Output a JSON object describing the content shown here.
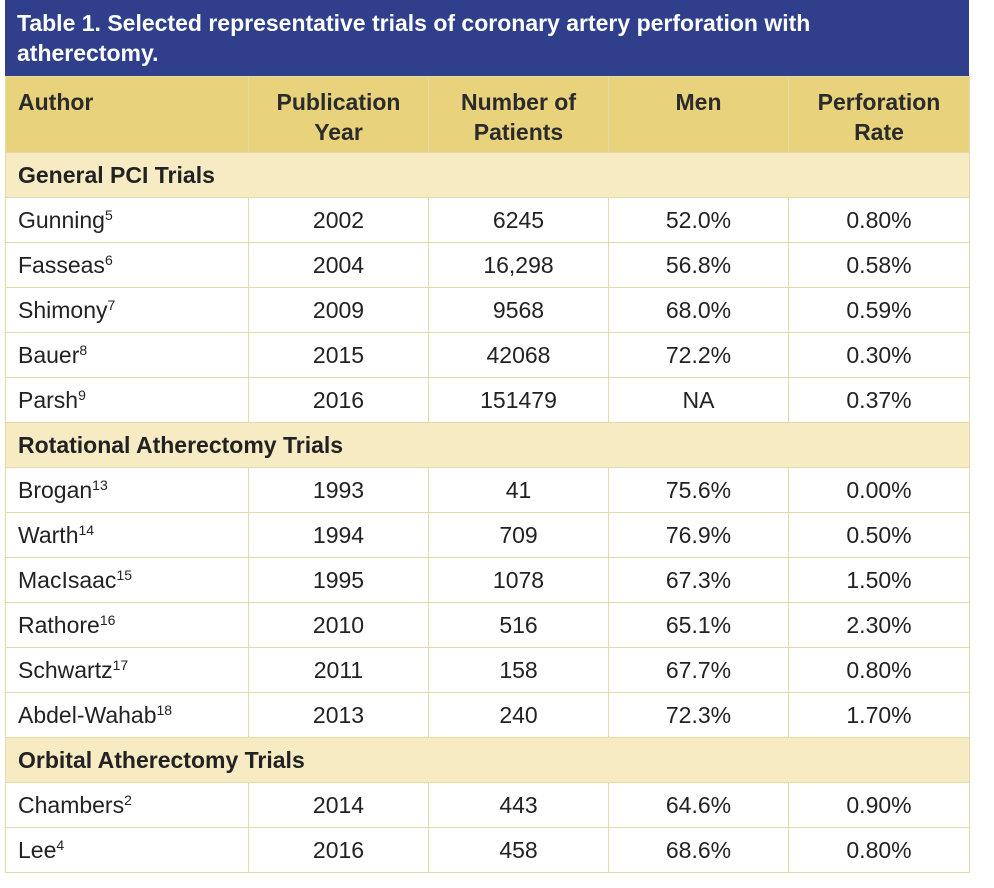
{
  "table": {
    "title": "Table 1. Selected representative trials of coronary artery perforation with atherectomy.",
    "columns": [
      "Author",
      "Publication Year",
      "Number of Patients",
      "Men",
      "Perforation Rate"
    ],
    "sections": [
      {
        "title": "General PCI Trials",
        "rows": [
          {
            "author": "Gunning",
            "ref": "5",
            "cells": [
              "2002",
              "6245",
              "52.0%",
              "0.80%"
            ]
          },
          {
            "author": "Fasseas",
            "ref": "6",
            "cells": [
              "2004",
              "16,298",
              "56.8%",
              "0.58%"
            ]
          },
          {
            "author": "Shimony",
            "ref": "7",
            "cells": [
              "2009",
              "9568",
              "68.0%",
              "0.59%"
            ]
          },
          {
            "author": "Bauer",
            "ref": "8",
            "cells": [
              "2015",
              "42068",
              "72.2%",
              "0.30%"
            ]
          },
          {
            "author": "Parsh",
            "ref": "9",
            "cells": [
              "2016",
              "151479",
              "NA",
              "0.37%"
            ]
          }
        ]
      },
      {
        "title": "Rotational Atherectomy Trials",
        "rows": [
          {
            "author": "Brogan",
            "ref": "13",
            "cells": [
              "1993",
              "41",
              "75.6%",
              "0.00%"
            ]
          },
          {
            "author": "Warth",
            "ref": "14",
            "cells": [
              "1994",
              "709",
              "76.9%",
              "0.50%"
            ]
          },
          {
            "author": "MacIsaac",
            "ref": "15",
            "cells": [
              "1995",
              "1078",
              "67.3%",
              "1.50%"
            ]
          },
          {
            "author": "Rathore",
            "ref": "16",
            "cells": [
              "2010",
              "516",
              "65.1%",
              "2.30%"
            ]
          },
          {
            "author": "Schwartz",
            "ref": "17",
            "cells": [
              "2011",
              "158",
              "67.7%",
              "0.80%"
            ]
          },
          {
            "author": "Abdel-Wahab",
            "ref": "18",
            "cells": [
              "2013",
              "240",
              "72.3%",
              "1.70%"
            ]
          }
        ]
      },
      {
        "title": "Orbital Atherectomy Trials",
        "rows": [
          {
            "author": "Chambers",
            "ref": "2",
            "cells": [
              "2014",
              "443",
              "64.6%",
              "0.90%"
            ]
          },
          {
            "author": "Lee",
            "ref": "4",
            "cells": [
              "2016",
              "458",
              "68.6%",
              "0.80%"
            ]
          }
        ]
      }
    ]
  }
}
